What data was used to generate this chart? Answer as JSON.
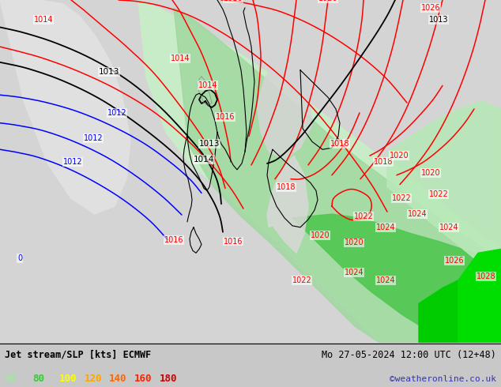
{
  "title_left": "Jet stream/SLP [kts] ECMWF",
  "title_right": "Mo 27-05-2024 12:00 UTC (12+48)",
  "credit": "©weatheronline.co.uk",
  "legend_values": [
    "60",
    "80",
    "100",
    "120",
    "140",
    "160",
    "180"
  ],
  "legend_colors": [
    "#a0e8a0",
    "#32cd32",
    "#ffff00",
    "#ffa500",
    "#ff6600",
    "#ff2200",
    "#cc0000"
  ],
  "bg_color": "#c8c8c8",
  "map_ocean": "#d0d0d0",
  "fig_width": 6.34,
  "fig_height": 4.9,
  "dpi": 100,
  "green_light": "#c8ecc8",
  "green_mid": "#a0d8a0",
  "green_bright": "#50c850",
  "green_vivid": "#00cc00"
}
